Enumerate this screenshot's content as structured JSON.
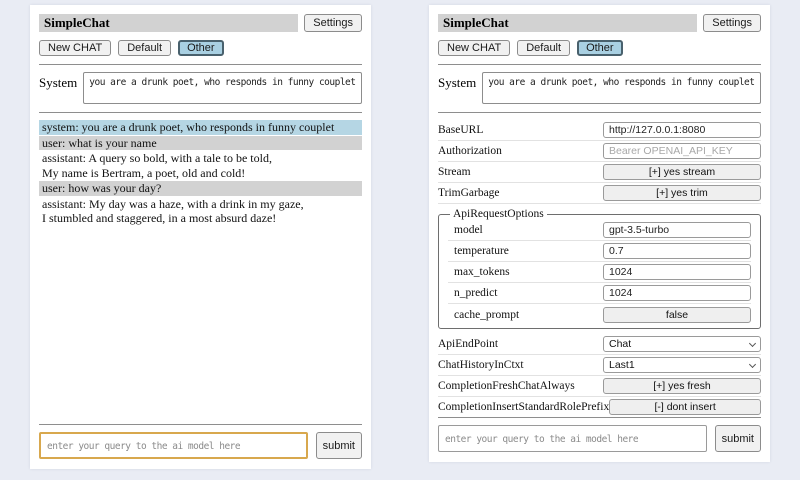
{
  "colors": {
    "page_bg": "#e9ecf4",
    "titlebar_bg": "#d2d2d2",
    "selected_tab_bg": "#a9d0e2",
    "system_msg_bg": "#b5d6e4",
    "user_msg_bg": "#d2d2d2",
    "query_focus_border": "#d8a84e"
  },
  "left_panel": {
    "title": "SimpleChat",
    "settings_button": "Settings",
    "buttons": {
      "new_chat": "New CHAT",
      "default": "Default",
      "other": "Other"
    },
    "system": {
      "label": "System",
      "value": "you are a drunk poet, who responds in funny couplet"
    },
    "messages": [
      {
        "role": "system",
        "line1": "system: you are a drunk poet, who responds in funny couplet"
      },
      {
        "role": "user",
        "line1": "user: what is your name"
      },
      {
        "role": "assistant",
        "line1": "assistant: A query so bold, with a tale to be told,",
        "line2": "My name is Bertram, a poet, old and cold!"
      },
      {
        "role": "user",
        "line1": "user: how was your day?"
      },
      {
        "role": "assistant",
        "line1": "assistant: My day was a haze, with a drink in my gaze,",
        "line2": "I stumbled and staggered, in a most absurd daze!"
      }
    ],
    "query": {
      "placeholder": "enter your query to the ai model here",
      "submit": "submit"
    }
  },
  "right_panel": {
    "title": "SimpleChat",
    "settings_button": "Settings",
    "buttons": {
      "new_chat": "New CHAT",
      "default": "Default",
      "other": "Other"
    },
    "system": {
      "label": "System",
      "value": "you are a drunk poet, who responds in funny couplet"
    },
    "settings": {
      "base_url": {
        "label": "BaseURL",
        "value": "http://127.0.0.1:8080"
      },
      "authorization": {
        "label": "Authorization",
        "placeholder": "Bearer OPENAI_API_KEY"
      },
      "stream": {
        "label": "Stream",
        "value": "[+] yes stream"
      },
      "trim_garbage": {
        "label": "TrimGarbage",
        "value": "[+] yes trim"
      },
      "api_request_options": {
        "legend": "ApiRequestOptions",
        "model": {
          "label": "model",
          "value": "gpt-3.5-turbo"
        },
        "temperature": {
          "label": "temperature",
          "value": "0.7"
        },
        "max_tokens": {
          "label": "max_tokens",
          "value": "1024"
        },
        "n_predict": {
          "label": "n_predict",
          "value": "1024"
        },
        "cache_prompt": {
          "label": "cache_prompt",
          "value": "false"
        }
      },
      "api_endpoint": {
        "label": "ApiEndPoint",
        "value": "Chat"
      },
      "chat_history_in_ctxt": {
        "label": "ChatHistoryInCtxt",
        "value": "Last1"
      },
      "completion_fresh_chat_always": {
        "label": "CompletionFreshChatAlways",
        "value": "[+] yes fresh"
      },
      "completion_insert_standard_role_prefix": {
        "label": "CompletionInsertStandardRolePrefix",
        "value": "[-] dont insert"
      }
    },
    "query": {
      "placeholder": "enter your query to the ai model here",
      "submit": "submit"
    }
  }
}
